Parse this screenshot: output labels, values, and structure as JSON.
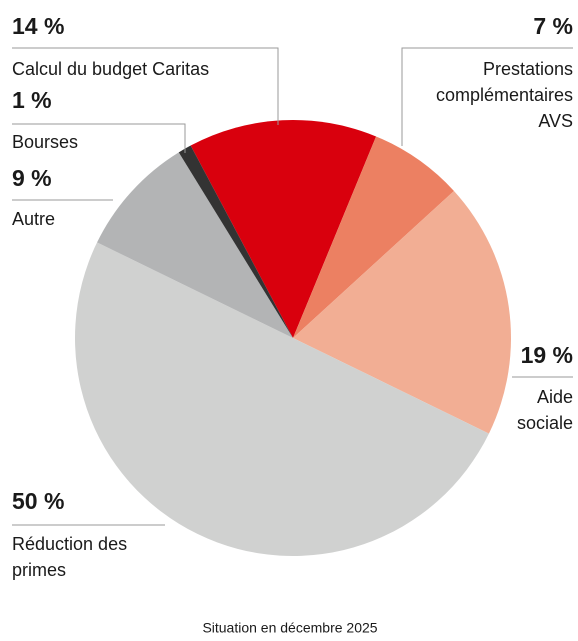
{
  "chart_data": {
    "type": "pie",
    "categories": [
      "Calcul du budget Caritas",
      "Prestations\ncomplémentaires\nAVS",
      "Aide\nsociale",
      "Réduction des\nprimes",
      "Autre",
      "Bourses"
    ],
    "values": [
      14,
      7,
      19,
      50,
      9,
      1
    ],
    "value_labels": [
      "14 %",
      "7 %",
      "19 %",
      "50 %",
      "9 %",
      "1 %"
    ],
    "colors": [
      "#d9000d",
      "#ec8062",
      "#f2ae94",
      "#d0d1d0",
      "#b3b4b5",
      "#333333"
    ],
    "footnote": "Situation en décembre 2025"
  }
}
